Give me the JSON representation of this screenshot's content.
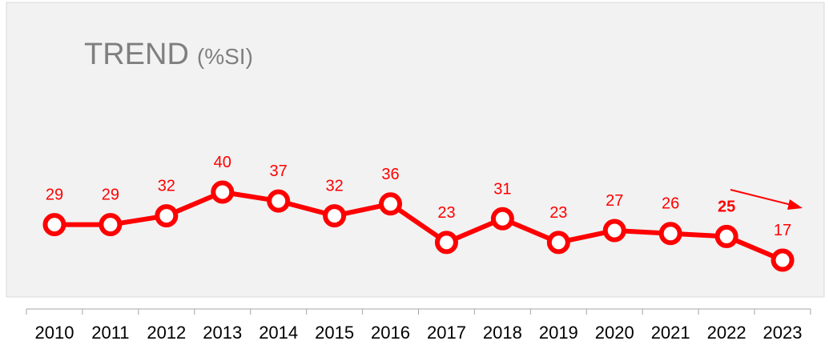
{
  "chart_data": {
    "type": "line",
    "title": "TREND",
    "subtitle": "(%SI)",
    "categories": [
      "2010",
      "2011",
      "2012",
      "2013",
      "2014",
      "2015",
      "2016",
      "2017",
      "2018",
      "2019",
      "2020",
      "2021",
      "2022",
      "2023"
    ],
    "series": [
      {
        "name": "%SI",
        "color": "#ff0000",
        "values": [
          29,
          29,
          32,
          40,
          37,
          32,
          36,
          23,
          31,
          23,
          27,
          26,
          25,
          17
        ]
      }
    ]
  }
}
